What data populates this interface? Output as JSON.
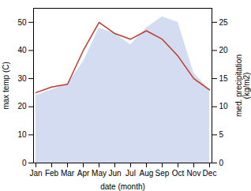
{
  "chart_data": {
    "type": "line",
    "categories": [
      "Jan",
      "Feb",
      "Mar",
      "Apr",
      "May",
      "Jun",
      "Jul",
      "Aug",
      "Sep",
      "Oct",
      "Nov",
      "Dec"
    ],
    "xlabel": "date (month)",
    "ylabel": "max temp (C)",
    "y2label": "med. precipitation\n(kg/m2)",
    "ylim": [
      0,
      55
    ],
    "yticks": [
      0,
      10,
      20,
      30,
      40,
      50
    ],
    "y2lim": [
      0,
      27.5
    ],
    "y2ticks": [
      0,
      5,
      10,
      15,
      20,
      25
    ],
    "series": [
      {
        "type": "area",
        "axis": "y2",
        "color": "#b8c4e8",
        "values": [
          12,
          13,
          14,
          18,
          24,
          23,
          21,
          24,
          26,
          25,
          16,
          13
        ]
      },
      {
        "type": "line",
        "color": "#c0392b",
        "values": [
          25,
          27,
          28,
          40,
          50,
          46,
          44,
          47,
          44,
          38,
          30,
          26
        ]
      }
    ]
  }
}
